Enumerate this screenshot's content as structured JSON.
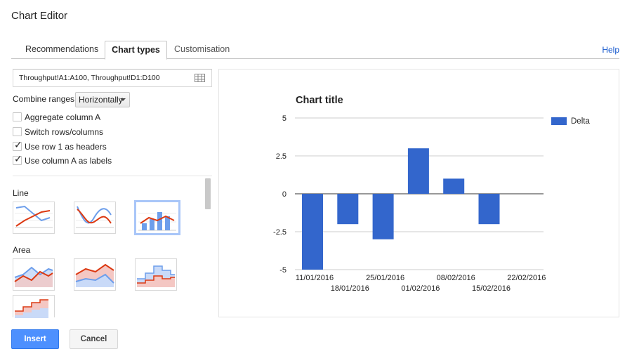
{
  "dialog": {
    "title": "Chart Editor"
  },
  "tabs": [
    {
      "label": "Recommendations"
    },
    {
      "label": "Chart types"
    },
    {
      "label": "Customisation"
    }
  ],
  "help_label": "Help",
  "range": {
    "value": "Throughput!A1:A100, Throughput!D1:D100"
  },
  "combine": {
    "label": "Combine ranges:",
    "selected": "Horizontally"
  },
  "options": [
    {
      "label": "Aggregate column A",
      "checked": false
    },
    {
      "label": "Switch rows/columns",
      "checked": false
    },
    {
      "label": "Use row 1 as headers",
      "checked": true
    },
    {
      "label": "Use column A as labels",
      "checked": true
    }
  ],
  "sections": {
    "line": "Line",
    "area": "Area"
  },
  "buttons": {
    "insert": "Insert",
    "cancel": "Cancel"
  },
  "colors": {
    "accent": "#4d90fe",
    "bar": "#3366cc",
    "line_red": "#dc3912",
    "line_blue": "#6d9eeb"
  },
  "chart_data": {
    "type": "bar",
    "title": "Chart title",
    "categories": [
      "11/01/2016",
      "18/01/2016",
      "25/01/2016",
      "01/02/2016",
      "08/02/2016",
      "15/02/2016",
      "22/02/2016"
    ],
    "series": [
      {
        "name": "Delta",
        "values": [
          -5,
          -2,
          -3,
          3,
          1,
          -2,
          null
        ]
      }
    ],
    "ylim": [
      -5,
      5
    ],
    "yticks": [
      "5",
      "2.5",
      "0",
      "-2.5",
      "-5"
    ],
    "grid": true,
    "legend": "right"
  }
}
